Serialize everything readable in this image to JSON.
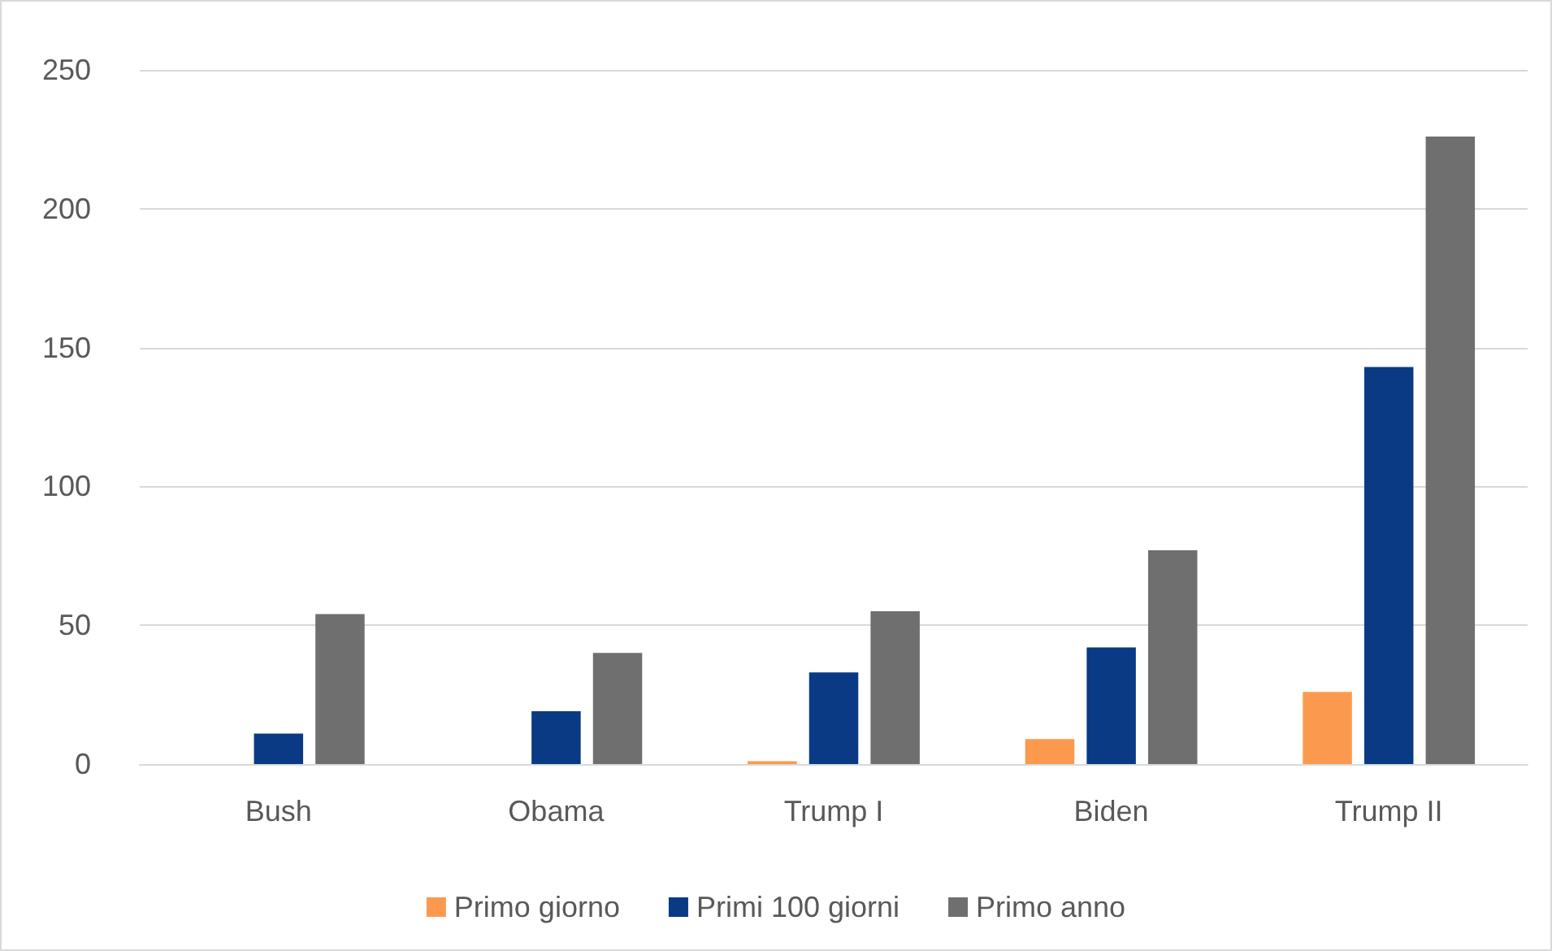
{
  "chart_data": {
    "type": "bar",
    "categories": [
      "Bush",
      "Obama",
      "Trump I",
      "Biden",
      "Trump II"
    ],
    "series": [
      {
        "name": "Primo giorno",
        "color": "#fb9a4f",
        "values": [
          0,
          0,
          1,
          9,
          26
        ]
      },
      {
        "name": "Primi 100 giorni",
        "color": "#0b3a84",
        "values": [
          11,
          19,
          33,
          42,
          143
        ]
      },
      {
        "name": "Primo anno",
        "color": "#6f6f6f",
        "values": [
          54,
          40,
          55,
          77,
          226
        ]
      }
    ],
    "ylim": [
      0,
      250
    ],
    "yticks": [
      0,
      50,
      100,
      150,
      200,
      250
    ],
    "grid": "y",
    "legend": "bottom"
  }
}
